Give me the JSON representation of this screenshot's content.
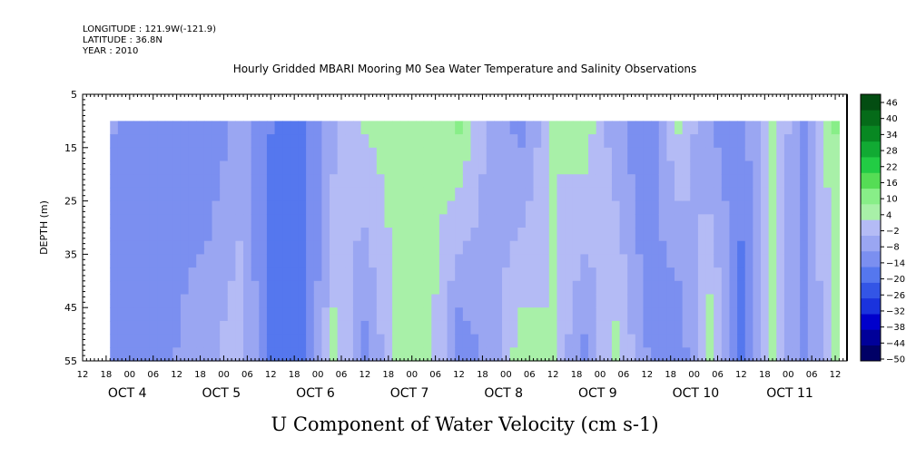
{
  "header": {
    "longitude": "LONGITUDE : 121.9W(-121.9)",
    "latitude": "LATITUDE : 36.8N",
    "year": "YEAR : 2010"
  },
  "chart_data": {
    "type": "heatmap",
    "title": "Hourly Gridded MBARI Mooring M0 Sea Water Temperature and Salinity Observations",
    "xlabel": "U Component of Water Velocity (cm s-1)",
    "ylabel": "DEPTH (m)",
    "y_axis": {
      "range": [
        5,
        55
      ],
      "inverted": true,
      "ticks": [
        5,
        15,
        25,
        35,
        45,
        55
      ],
      "data_range": [
        10,
        55
      ]
    },
    "x_axis": {
      "start": "2010-10-03 12:00",
      "end": "2010-10-11 15:00",
      "data_start": "2010-10-03 19:00",
      "data_end": "2010-10-11 12:00",
      "hour_tick_labels": [
        "12",
        "18",
        "00",
        "06",
        "12",
        "18",
        "00",
        "06",
        "12",
        "18",
        "00",
        "06",
        "12",
        "18",
        "00",
        "06",
        "12",
        "18",
        "00",
        "06",
        "12",
        "18",
        "00",
        "06",
        "12",
        "18",
        "00",
        "06",
        "12",
        "18",
        "00",
        "06",
        "12"
      ],
      "day_labels": [
        {
          "text": "OCT  4",
          "date": "2010-10-04"
        },
        {
          "text": "OCT  5",
          "date": "2010-10-05"
        },
        {
          "text": "OCT  6",
          "date": "2010-10-06"
        },
        {
          "text": "OCT  7",
          "date": "2010-10-07"
        },
        {
          "text": "OCT  8",
          "date": "2010-10-08"
        },
        {
          "text": "OCT  9",
          "date": "2010-10-09"
        },
        {
          "text": "OCT 10",
          "date": "2010-10-10"
        },
        {
          "text": "OCT 11",
          "date": "2010-10-11"
        }
      ]
    },
    "colorbar": {
      "levels": [
        -50,
        -44,
        -38,
        -32,
        -26,
        -20,
        -14,
        -8,
        -2,
        4,
        10,
        16,
        22,
        28,
        34,
        40,
        46
      ],
      "labels": [
        "46",
        "40",
        "34",
        "28",
        "22",
        "16",
        "10",
        "4",
        "−2",
        "−8",
        "−14",
        "−20",
        "−26",
        "−32",
        "−38",
        "−44",
        "−50"
      ],
      "colors": [
        "#000066",
        "#000099",
        "#0000cc",
        "#1a33dd",
        "#3355e6",
        "#5577ee",
        "#7b8ff0",
        "#9aa6f2",
        "#b4bbf5",
        "#a8f0a8",
        "#88ee88",
        "#55dd55",
        "#22cc44",
        "#11aa33",
        "#088822",
        "#056b19",
        "#034d12"
      ]
    },
    "column_profile": {
      "description_units": "hours since data start; representative u values (cm/s) at surface and bottom",
      "x_hours": [
        0,
        8,
        16,
        24,
        32,
        40,
        48,
        56,
        64,
        72,
        80,
        88,
        96,
        104,
        112,
        120,
        128,
        136,
        144,
        152,
        160,
        168,
        176,
        184,
        185
      ],
      "u_surface": [
        -8,
        -14,
        -10,
        -12,
        -6,
        -14,
        -16,
        -4,
        4,
        8,
        6,
        10,
        -4,
        -10,
        4,
        8,
        -6,
        -14,
        4,
        -8,
        -12,
        6,
        -10,
        10,
        10
      ],
      "u_bottom": [
        -10,
        -12,
        -8,
        -4,
        2,
        -16,
        -20,
        6,
        -10,
        4,
        8,
        -12,
        -6,
        8,
        4,
        -10,
        6,
        -8,
        -14,
        8,
        -16,
        4,
        -12,
        6,
        6
      ]
    }
  }
}
